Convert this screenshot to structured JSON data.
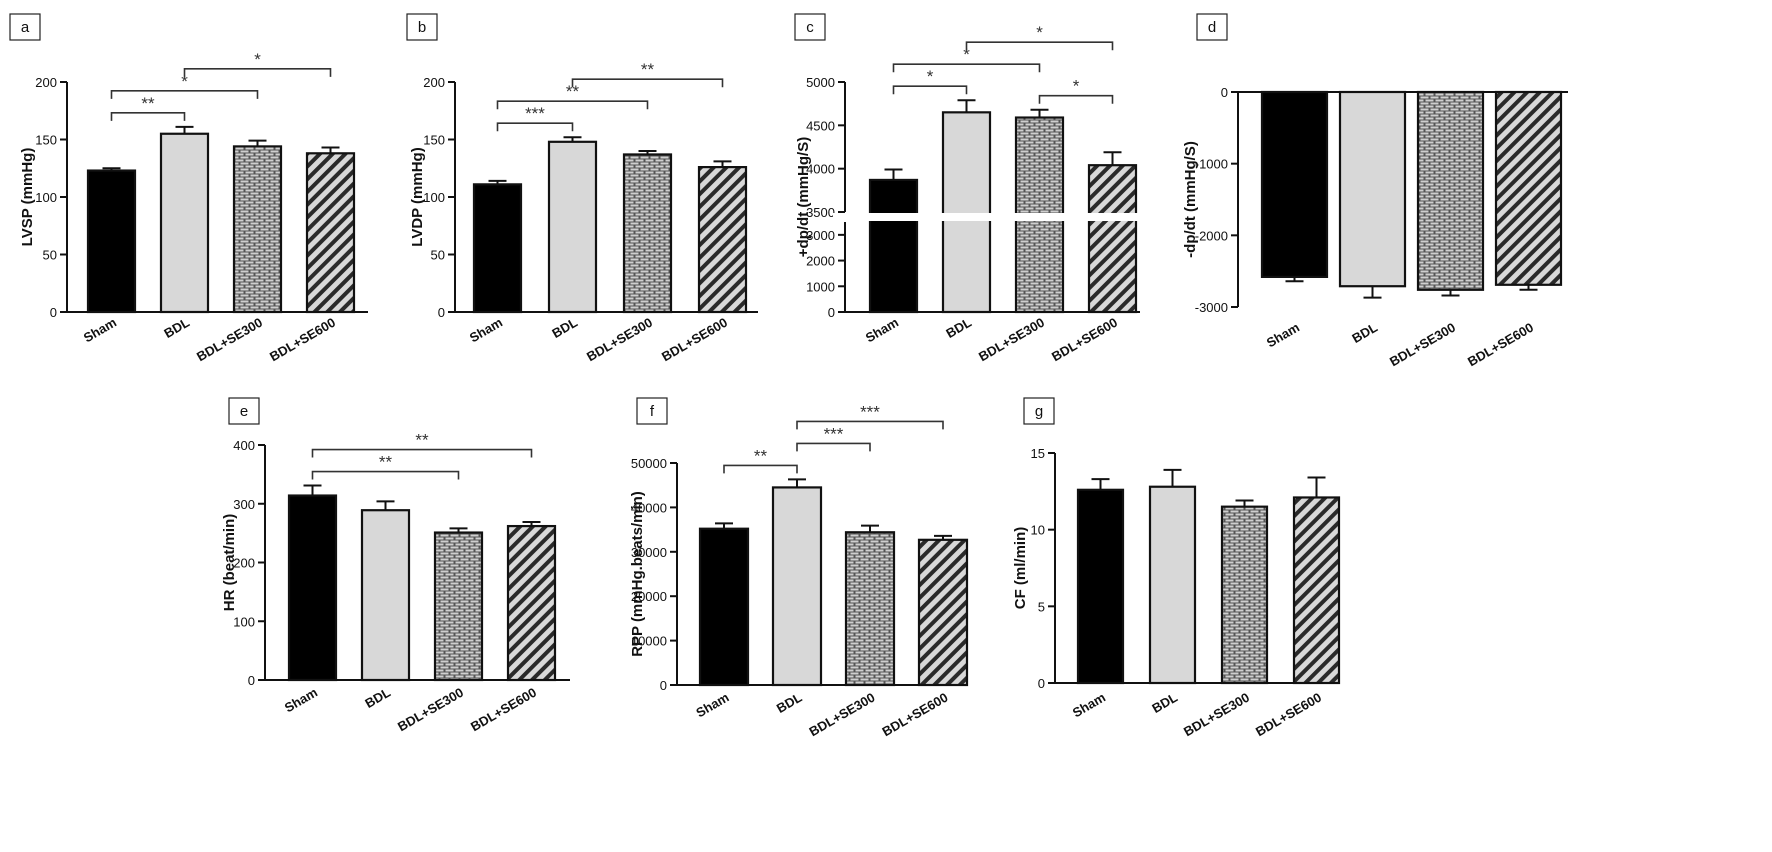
{
  "chart_data": [
    {
      "panel": "a",
      "type": "bar",
      "categories": [
        "Sham",
        "BDL",
        "BDL+SE300",
        "BDL+SE600"
      ],
      "values": [
        123,
        155,
        144,
        138
      ],
      "errors": [
        2,
        6,
        5,
        5
      ],
      "ylabel": "LVSP (mmHg)",
      "ylim": [
        0,
        200
      ],
      "yticks": [
        "0",
        "50",
        "100",
        "150",
        "200"
      ],
      "significance": [
        {
          "from": 0,
          "to": 1,
          "label": "**"
        },
        {
          "from": 0,
          "to": 2,
          "label": "*"
        },
        {
          "from": 1,
          "to": 3,
          "label": "*"
        }
      ]
    },
    {
      "panel": "b",
      "type": "bar",
      "categories": [
        "Sham",
        "BDL",
        "BDL+SE300",
        "BDL+SE600"
      ],
      "values": [
        111,
        148,
        137,
        126
      ],
      "errors": [
        3,
        4,
        3,
        5
      ],
      "ylabel": "LVDP (mmHg)",
      "ylim": [
        0,
        200
      ],
      "yticks": [
        "0",
        "50",
        "100",
        "150",
        "200"
      ],
      "significance": [
        {
          "from": 0,
          "to": 1,
          "label": "***"
        },
        {
          "from": 0,
          "to": 2,
          "label": "**"
        },
        {
          "from": 1,
          "to": 3,
          "label": "**"
        }
      ]
    },
    {
      "panel": "c",
      "type": "bar",
      "axis_break": true,
      "categories": [
        "Sham",
        "BDL",
        "BDL+SE300",
        "BDL+SE600"
      ],
      "values": [
        3870,
        4650,
        4590,
        4040
      ],
      "errors": [
        120,
        140,
        90,
        150
      ],
      "ylabel": "+dp/dt (mmHg/S)",
      "yticks_lower": [
        "0",
        "1000",
        "2000",
        "3000"
      ],
      "yticks_upper": [
        "3500",
        "4000",
        "4500",
        "5000"
      ],
      "significance": [
        {
          "from": 0,
          "to": 1,
          "label": "*"
        },
        {
          "from": 0,
          "to": 2,
          "label": "*"
        },
        {
          "from": 1,
          "to": 3,
          "label": "*"
        },
        {
          "from": 2,
          "to": 3,
          "label": "*"
        }
      ]
    },
    {
      "panel": "d",
      "type": "bar",
      "categories": [
        "Sham",
        "BDL",
        "BDL+SE300",
        "BDL+SE600"
      ],
      "values": [
        -2580,
        -2710,
        -2760,
        -2690
      ],
      "errors": [
        60,
        160,
        80,
        70
      ],
      "ylabel": "-dp/dt (mmHg/S)",
      "ylim": [
        -3000,
        0
      ],
      "yticks": [
        "-3000",
        "-2000",
        "-1000",
        "0"
      ],
      "significance": []
    },
    {
      "panel": "e",
      "type": "bar",
      "categories": [
        "Sham",
        "BDL",
        "BDL+SE300",
        "BDL+SE600"
      ],
      "values": [
        314,
        289,
        251,
        262
      ],
      "errors": [
        17,
        15,
        7,
        7
      ],
      "ylabel": "HR (beat/min)",
      "ylim": [
        0,
        400
      ],
      "yticks": [
        "0",
        "100",
        "200",
        "300",
        "400"
      ],
      "significance": [
        {
          "from": 0,
          "to": 2,
          "label": "**"
        },
        {
          "from": 0,
          "to": 3,
          "label": "**"
        }
      ]
    },
    {
      "panel": "f",
      "type": "bar",
      "categories": [
        "Sham",
        "BDL",
        "BDL+SE300",
        "BDL+SE600"
      ],
      "values": [
        35200,
        44500,
        34400,
        32700
      ],
      "errors": [
        1200,
        1800,
        1500,
        900
      ],
      "ylabel": "RPP (mmHg.beats/min)",
      "ylim": [
        0,
        50000
      ],
      "yticks": [
        "0",
        "10000",
        "20000",
        "30000",
        "40000",
        "50000"
      ],
      "significance": [
        {
          "from": 0,
          "to": 1,
          "label": "**"
        },
        {
          "from": 1,
          "to": 2,
          "label": "***"
        },
        {
          "from": 1,
          "to": 3,
          "label": "***"
        }
      ]
    },
    {
      "panel": "g",
      "type": "bar",
      "categories": [
        "Sham",
        "BDL",
        "BDL+SE300",
        "BDL+SE600"
      ],
      "values": [
        12.6,
        12.8,
        11.5,
        12.1
      ],
      "errors": [
        0.7,
        1.1,
        0.4,
        1.3
      ],
      "ylabel": "CF (ml/min)",
      "ylim": [
        0,
        15
      ],
      "yticks": [
        "0",
        "5",
        "10",
        "15"
      ],
      "significance": []
    }
  ],
  "colors": {
    "sham_fill": "#000000",
    "bdl_fill": "#d8d8d8",
    "se300_fill": "#555555",
    "se300_brick": "#d0d0d0",
    "se600_hatch": "#2a2a2a",
    "se600_bg": "#d8d8d8",
    "bracket": "#333333"
  }
}
